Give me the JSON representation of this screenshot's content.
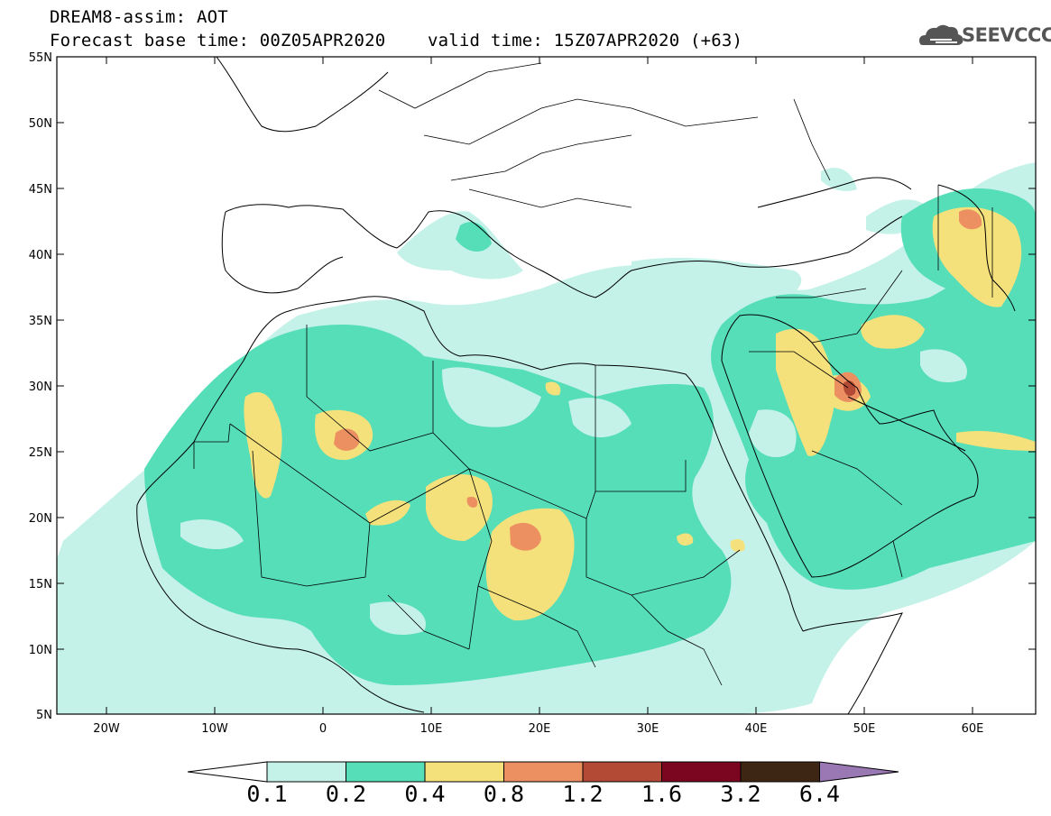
{
  "header": {
    "title_line1": "DREAM8-assim: AOT",
    "title_line2": "Forecast base time: 00Z05APR2020    valid time: 15Z07APR2020 (+63)"
  },
  "logo": {
    "text": "SEEVCCC",
    "icon": "cloud-logo-icon"
  },
  "map": {
    "lat_labels": [
      "55N",
      "50N",
      "45N",
      "40N",
      "35N",
      "30N",
      "25N",
      "20N",
      "15N",
      "10N",
      "5N"
    ],
    "lon_labels": [
      "20W",
      "10W",
      "0",
      "10E",
      "20E",
      "30E",
      "40E",
      "50E",
      "60E"
    ]
  },
  "colorbar": {
    "labels": [
      "0.1",
      "0.2",
      "0.4",
      "0.8",
      "1.2",
      "1.6",
      "3.2",
      "6.4"
    ],
    "colors": [
      "#c4f2e8",
      "#56deb8",
      "#f4e17c",
      "#ec9062",
      "#b34a35",
      "#7a0620",
      "#3d2614",
      "#9a78b3"
    ]
  }
}
